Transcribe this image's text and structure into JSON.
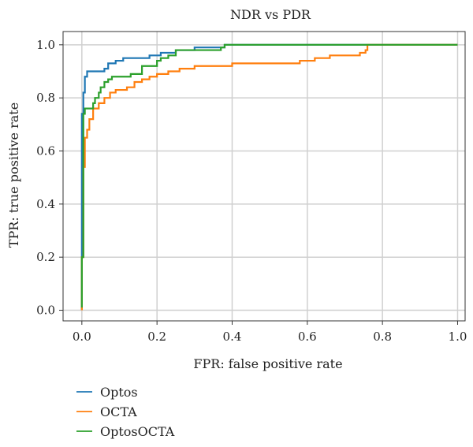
{
  "chart_data": {
    "type": "line",
    "title": "NDR vs PDR",
    "xlabel": "FPR: false positive rate",
    "ylabel": "TPR: true positive rate",
    "xlim": [
      -0.05,
      1.02
    ],
    "ylim": [
      -0.04,
      1.05
    ],
    "xticks": [
      0.0,
      0.2,
      0.4,
      0.6,
      0.8,
      1.0
    ],
    "xtick_labels": [
      "0.0",
      "0.2",
      "0.4",
      "0.6",
      "0.8",
      "1.0"
    ],
    "yticks": [
      0.0,
      0.2,
      0.4,
      0.6,
      0.8,
      1.0
    ],
    "ytick_labels": [
      "0.0",
      "0.2",
      "0.4",
      "0.6",
      "0.8",
      "1.0"
    ],
    "grid": true,
    "legend_position": "below",
    "series": [
      {
        "name": "Optos",
        "color": "#1f77b4",
        "points": [
          [
            0,
            0
          ],
          [
            0,
            0.55
          ],
          [
            0,
            0.74
          ],
          [
            0.004,
            0.74
          ],
          [
            0.004,
            0.82
          ],
          [
            0.008,
            0.82
          ],
          [
            0.008,
            0.88
          ],
          [
            0.014,
            0.88
          ],
          [
            0.014,
            0.9
          ],
          [
            0.06,
            0.9
          ],
          [
            0.06,
            0.91
          ],
          [
            0.07,
            0.91
          ],
          [
            0.07,
            0.93
          ],
          [
            0.09,
            0.93
          ],
          [
            0.09,
            0.94
          ],
          [
            0.11,
            0.94
          ],
          [
            0.11,
            0.95
          ],
          [
            0.18,
            0.95
          ],
          [
            0.18,
            0.96
          ],
          [
            0.21,
            0.96
          ],
          [
            0.21,
            0.97
          ],
          [
            0.25,
            0.97
          ],
          [
            0.25,
            0.98
          ],
          [
            0.3,
            0.98
          ],
          [
            0.3,
            0.99
          ],
          [
            0.38,
            0.99
          ],
          [
            0.38,
            1.0
          ],
          [
            1.0,
            1.0
          ]
        ]
      },
      {
        "name": "OCTA",
        "color": "#ff7f0e",
        "points": [
          [
            0,
            0
          ],
          [
            0,
            0.2
          ],
          [
            0.004,
            0.2
          ],
          [
            0.004,
            0.54
          ],
          [
            0.008,
            0.54
          ],
          [
            0.008,
            0.65
          ],
          [
            0.014,
            0.65
          ],
          [
            0.014,
            0.68
          ],
          [
            0.02,
            0.68
          ],
          [
            0.02,
            0.72
          ],
          [
            0.03,
            0.72
          ],
          [
            0.03,
            0.76
          ],
          [
            0.045,
            0.76
          ],
          [
            0.045,
            0.78
          ],
          [
            0.06,
            0.78
          ],
          [
            0.06,
            0.8
          ],
          [
            0.075,
            0.8
          ],
          [
            0.075,
            0.82
          ],
          [
            0.09,
            0.82
          ],
          [
            0.09,
            0.83
          ],
          [
            0.12,
            0.83
          ],
          [
            0.12,
            0.84
          ],
          [
            0.14,
            0.84
          ],
          [
            0.14,
            0.86
          ],
          [
            0.16,
            0.86
          ],
          [
            0.16,
            0.87
          ],
          [
            0.18,
            0.87
          ],
          [
            0.18,
            0.88
          ],
          [
            0.2,
            0.88
          ],
          [
            0.2,
            0.89
          ],
          [
            0.23,
            0.89
          ],
          [
            0.23,
            0.9
          ],
          [
            0.26,
            0.9
          ],
          [
            0.26,
            0.91
          ],
          [
            0.3,
            0.91
          ],
          [
            0.3,
            0.92
          ],
          [
            0.4,
            0.92
          ],
          [
            0.4,
            0.93
          ],
          [
            0.58,
            0.93
          ],
          [
            0.58,
            0.94
          ],
          [
            0.62,
            0.94
          ],
          [
            0.62,
            0.95
          ],
          [
            0.66,
            0.95
          ],
          [
            0.66,
            0.96
          ],
          [
            0.74,
            0.96
          ],
          [
            0.74,
            0.97
          ],
          [
            0.755,
            0.97
          ],
          [
            0.755,
            0.98
          ],
          [
            0.76,
            0.98
          ],
          [
            0.76,
            1.0
          ],
          [
            1.0,
            1.0
          ]
        ]
      },
      {
        "name": "OptosOCTA",
        "color": "#2ca02c",
        "points": [
          [
            0,
            0.01
          ],
          [
            0,
            0.2
          ],
          [
            0.004,
            0.2
          ],
          [
            0.004,
            0.74
          ],
          [
            0.008,
            0.74
          ],
          [
            0.008,
            0.76
          ],
          [
            0.03,
            0.76
          ],
          [
            0.03,
            0.78
          ],
          [
            0.035,
            0.78
          ],
          [
            0.035,
            0.8
          ],
          [
            0.045,
            0.8
          ],
          [
            0.045,
            0.82
          ],
          [
            0.05,
            0.82
          ],
          [
            0.05,
            0.84
          ],
          [
            0.06,
            0.84
          ],
          [
            0.06,
            0.86
          ],
          [
            0.07,
            0.86
          ],
          [
            0.07,
            0.87
          ],
          [
            0.08,
            0.87
          ],
          [
            0.08,
            0.88
          ],
          [
            0.13,
            0.88
          ],
          [
            0.13,
            0.89
          ],
          [
            0.16,
            0.89
          ],
          [
            0.16,
            0.92
          ],
          [
            0.2,
            0.92
          ],
          [
            0.2,
            0.94
          ],
          [
            0.21,
            0.94
          ],
          [
            0.21,
            0.95
          ],
          [
            0.23,
            0.95
          ],
          [
            0.23,
            0.96
          ],
          [
            0.25,
            0.96
          ],
          [
            0.25,
            0.98
          ],
          [
            0.37,
            0.98
          ],
          [
            0.37,
            0.99
          ],
          [
            0.38,
            0.99
          ],
          [
            0.38,
            1.0
          ],
          [
            1.0,
            1.0
          ]
        ]
      }
    ]
  }
}
